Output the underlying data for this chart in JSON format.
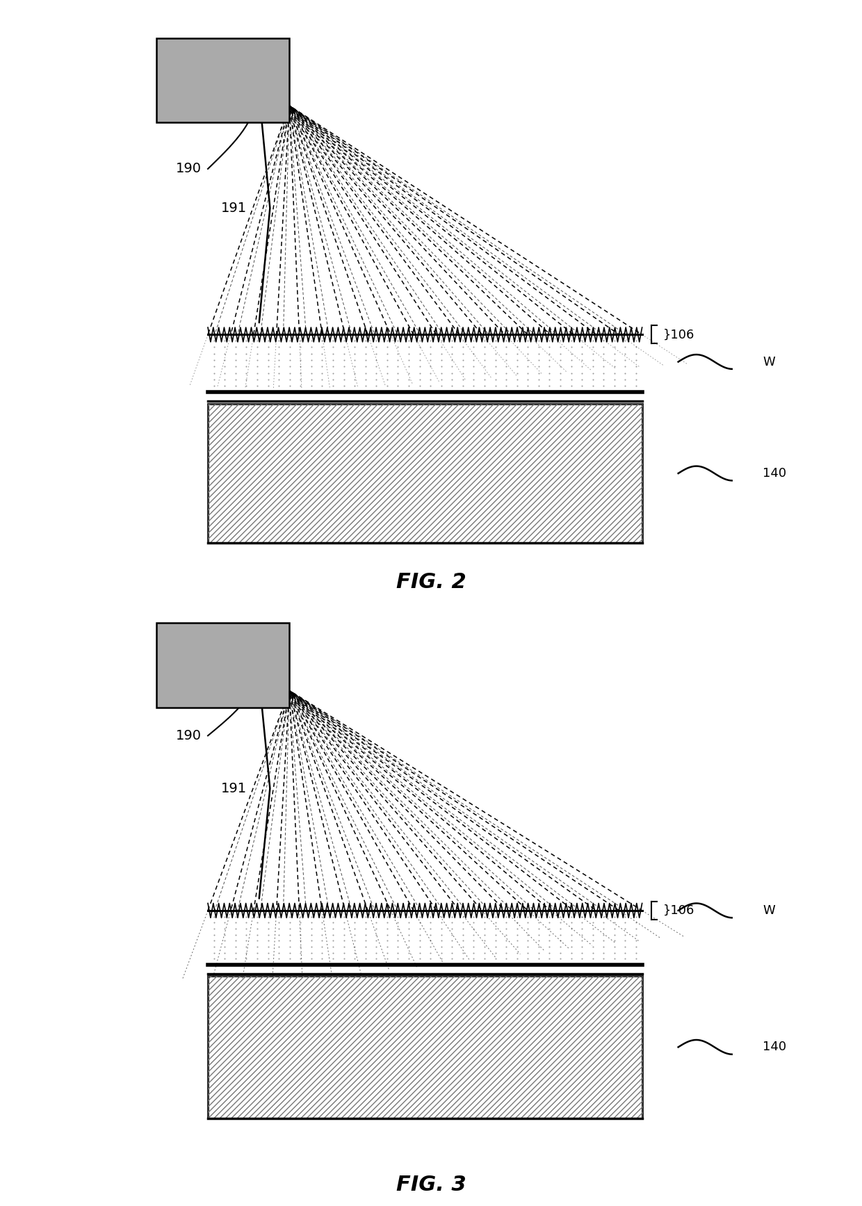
{
  "bg_color": "#ffffff",
  "fig_width": 12.4,
  "fig_height": 17.35,
  "fig2_label": "FIG. 2",
  "fig3_label": "FIG. 3",
  "beam_color": "#000000",
  "hatch_color": "#555555"
}
